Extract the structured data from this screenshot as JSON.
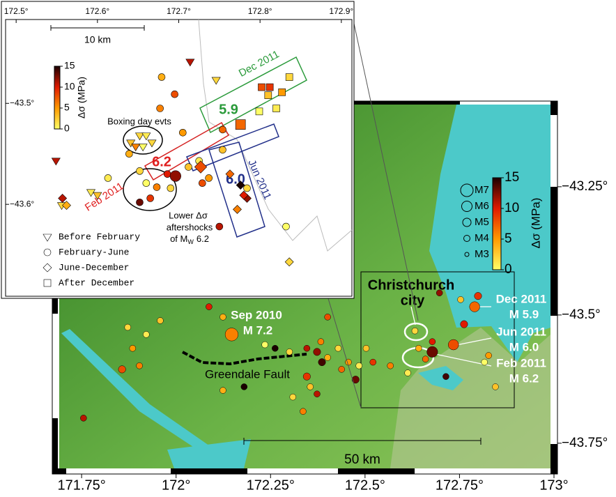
{
  "main_map": {
    "xlim": [
      171.7,
      173.0
    ],
    "ylim": [
      -43.81,
      -43.083
    ],
    "xticks": [
      {
        "value": 171.75,
        "label": "171.75°"
      },
      {
        "value": 172,
        "label": "172°"
      },
      {
        "value": 172.25,
        "label": "172.25°"
      },
      {
        "value": 172.5,
        "label": "172.5°"
      },
      {
        "value": 172.75,
        "label": "172.75°"
      },
      {
        "value": 173,
        "label": "173°"
      }
    ],
    "yticks": [
      {
        "value": -43.25,
        "label": "−43.25°"
      },
      {
        "value": -43.5,
        "label": "−43.5°"
      },
      {
        "value": -43.75,
        "label": "−43.75°"
      }
    ],
    "colorbar": {
      "label": "Δσ (MPa)",
      "lim": [
        0,
        15
      ],
      "ticks": [
        0,
        5,
        10,
        15
      ],
      "colormap": [
        "#ffff66",
        "#ff9a00",
        "#e01a00",
        "#1a0000"
      ]
    },
    "magnitude_legend": [
      {
        "value": 7,
        "label": "M7"
      },
      {
        "value": 6,
        "label": "M6"
      },
      {
        "value": 5,
        "label": "M5"
      },
      {
        "value": 4,
        "label": "M4"
      },
      {
        "value": 3,
        "label": "M3"
      }
    ],
    "annotations": {
      "city": [
        "Christchurch",
        "city"
      ],
      "sep_2010": [
        "Sep 2010",
        "M 7.2"
      ],
      "dec_2011": [
        "Dec 2011",
        "M 5.9"
      ],
      "jun_2011": [
        "Jun 2011",
        "M 6.0"
      ],
      "feb_2011": [
        "Feb 2011",
        "M 6.2"
      ],
      "fault": "Greendale Fault"
    },
    "scale_bar": "50 km",
    "points": [
      {
        "lon": 172.147,
        "lat": -43.538,
        "dsigma": 6,
        "mag": 7.2
      },
      {
        "lon": 171.755,
        "lat": -43.701,
        "dsigma": 11,
        "mag": 4
      },
      {
        "lon": 171.872,
        "lat": -43.524,
        "dsigma": 2,
        "mag": 4
      },
      {
        "lon": 171.885,
        "lat": -43.565,
        "dsigma": 5,
        "mag": 4
      },
      {
        "lon": 171.857,
        "lat": -43.606,
        "dsigma": 8,
        "mag": 4.5
      },
      {
        "lon": 171.921,
        "lat": -43.538,
        "dsigma": 1,
        "mag": 4
      },
      {
        "lon": 171.903,
        "lat": -43.599,
        "dsigma": 6,
        "mag": 4
      },
      {
        "lon": 171.958,
        "lat": -43.511,
        "dsigma": 3,
        "mag": 4
      },
      {
        "lon": 172.087,
        "lat": -43.484,
        "dsigma": 10,
        "mag": 4
      },
      {
        "lon": 172.124,
        "lat": -43.504,
        "dsigma": 4,
        "mag": 4
      },
      {
        "lon": 172.235,
        "lat": -43.558,
        "dsigma": 0,
        "mag": 4
      },
      {
        "lon": 172.262,
        "lat": -43.565,
        "dsigma": 15,
        "mag": 4
      },
      {
        "lon": 172.346,
        "lat": -43.62,
        "dsigma": 9,
        "mag": 4.5
      },
      {
        "lon": 172.355,
        "lat": -43.64,
        "dsigma": 3,
        "mag": 4
      },
      {
        "lon": 172.373,
        "lat": -43.572,
        "dsigma": 12,
        "mag": 4.5
      },
      {
        "lon": 172.383,
        "lat": -43.552,
        "dsigma": 6,
        "mag": 4
      },
      {
        "lon": 172.401,
        "lat": -43.583,
        "dsigma": 4,
        "mag": 4
      },
      {
        "lon": 172.386,
        "lat": -43.592,
        "dsigma": 14,
        "mag": 4.5
      },
      {
        "lon": 172.429,
        "lat": -43.565,
        "dsigma": 2,
        "mag": 4
      },
      {
        "lon": 172.438,
        "lat": -43.606,
        "dsigma": 7,
        "mag": 4
      },
      {
        "lon": 172.456,
        "lat": -43.592,
        "dsigma": 5,
        "mag": 4
      },
      {
        "lon": 172.475,
        "lat": -43.626,
        "dsigma": 13,
        "mag": 4.5
      },
      {
        "lon": 172.484,
        "lat": -43.599,
        "dsigma": 1,
        "mag": 4
      },
      {
        "lon": 172.503,
        "lat": -43.565,
        "dsigma": 3,
        "mag": 4
      },
      {
        "lon": 172.521,
        "lat": -43.592,
        "dsigma": 9,
        "mag": 4
      },
      {
        "lon": 172.373,
        "lat": -43.654,
        "dsigma": 11,
        "mag": 4
      },
      {
        "lon": 172.309,
        "lat": -43.66,
        "dsigma": 2,
        "mag": 4
      },
      {
        "lon": 172.336,
        "lat": -43.688,
        "dsigma": 6,
        "mag": 4
      },
      {
        "lon": 172.18,
        "lat": -43.64,
        "dsigma": 15,
        "mag": 4
      },
      {
        "lon": 172.124,
        "lat": -43.647,
        "dsigma": 4,
        "mag": 4
      },
      {
        "lon": 172.401,
        "lat": -43.504,
        "dsigma": 8,
        "mag": 4
      },
      {
        "lon": 172.632,
        "lat": -43.531,
        "dsigma": 2,
        "mag": 4
      },
      {
        "lon": 172.642,
        "lat": -43.565,
        "dsigma": 4,
        "mag": 4
      },
      {
        "lon": 172.678,
        "lat": -43.552,
        "dsigma": 10,
        "mag": 4
      },
      {
        "lon": 172.66,
        "lat": -43.586,
        "dsigma": 7,
        "mag": 4
      },
      {
        "lon": 172.697,
        "lat": -43.457,
        "dsigma": 12,
        "mag": 4
      },
      {
        "lon": 172.753,
        "lat": -43.47,
        "dsigma": 3,
        "mag": 4
      },
      {
        "lon": 172.799,
        "lat": -43.463,
        "dsigma": 9,
        "mag": 4.5
      },
      {
        "lon": 172.79,
        "lat": -43.484,
        "dsigma": 7,
        "mag": 5.9
      },
      {
        "lon": 172.762,
        "lat": -43.518,
        "dsigma": 10,
        "mag": 4.5
      },
      {
        "lon": 172.734,
        "lat": -43.558,
        "dsigma": 8,
        "mag": 6.0
      },
      {
        "lon": 172.678,
        "lat": -43.572,
        "dsigma": 13,
        "mag": 6.2
      },
      {
        "lon": 172.816,
        "lat": -43.592,
        "dsigma": 0,
        "mag": 4
      },
      {
        "lon": 172.827,
        "lat": -43.579,
        "dsigma": 5,
        "mag": 4
      },
      {
        "lon": 172.845,
        "lat": -43.64,
        "dsigma": 3,
        "mag": 4
      },
      {
        "lon": 172.613,
        "lat": -43.613,
        "dsigma": 1,
        "mag": 4
      },
      {
        "lon": 172.714,
        "lat": -43.62,
        "dsigma": 14,
        "mag": 4
      },
      {
        "lon": 172.3,
        "lat": -43.572,
        "dsigma": 2,
        "mag": 4
      },
      {
        "lon": 172.346,
        "lat": -43.565,
        "dsigma": 11,
        "mag": 4
      },
      {
        "lon": 172.567,
        "lat": -43.599,
        "dsigma": 6,
        "mag": 4
      }
    ]
  },
  "inset_map": {
    "xlim": [
      172.487,
      172.913
    ],
    "ylim": [
      -43.691,
      -43.417
    ],
    "xticks": [
      {
        "value": 172.5,
        "label": "172.5°"
      },
      {
        "value": 172.6,
        "label": "172.6°"
      },
      {
        "value": 172.7,
        "label": "172.7°"
      },
      {
        "value": 172.8,
        "label": "172.8°"
      },
      {
        "value": 172.9,
        "label": "172.9°"
      }
    ],
    "yticks": [
      {
        "value": -43.5,
        "label": "−43.5°"
      },
      {
        "value": -43.6,
        "label": "−43.6°"
      }
    ],
    "scale_bar": "10 km",
    "colorbar": {
      "label": "Δσ (MPa)",
      "lim": [
        0,
        15
      ],
      "ticks": [
        0,
        5,
        10,
        15
      ],
      "colormap": [
        "#ffff66",
        "#ff9a00",
        "#e01a00",
        "#1a0000"
      ]
    },
    "annotations": {
      "boxing_day": "Boxing day evts",
      "dec_2011": "Dec 2011",
      "m_dec": "5.9",
      "m_feb": "6.2",
      "m_jun": "6.0",
      "jun_2011": "Jun 2011",
      "feb_2011": "Feb 2011",
      "lower": [
        "Lower Δσ",
        "aftershocks",
        "of M",
        "W",
        "6.2"
      ]
    },
    "groups": [
      {
        "name": "Before February",
        "shape": "triangle",
        "points": [
          {
            "lon": 172.652,
            "lat": -43.532,
            "dsigma": 2
          },
          {
            "lon": 172.66,
            "lat": -43.532,
            "dsigma": 1
          },
          {
            "lon": 172.641,
            "lat": -43.539,
            "dsigma": 3
          },
          {
            "lon": 172.656,
            "lat": -43.543,
            "dsigma": 0
          },
          {
            "lon": 172.667,
            "lat": -43.539,
            "dsigma": 2
          },
          {
            "lon": 172.647,
            "lat": -43.543,
            "dsigma": 6
          },
          {
            "lon": 172.549,
            "lat": -43.557,
            "dsigma": 11
          },
          {
            "lon": 172.556,
            "lat": -43.601,
            "dsigma": 2
          },
          {
            "lon": 172.592,
            "lat": -43.588,
            "dsigma": 1
          },
          {
            "lon": 172.6,
            "lat": -43.591,
            "dsigma": 3
          },
          {
            "lon": 172.714,
            "lat": -43.459,
            "dsigma": 11
          },
          {
            "lon": 172.746,
            "lat": -43.477,
            "dsigma": 2
          }
        ]
      },
      {
        "name": "February-June",
        "shape": "circle",
        "points": [
          {
            "lon": 172.639,
            "lat": -43.55,
            "dsigma": 4
          },
          {
            "lon": 172.652,
            "lat": -43.567,
            "dsigma": 2
          },
          {
            "lon": 172.66,
            "lat": -43.579,
            "dsigma": 0
          },
          {
            "lon": 172.673,
            "lat": -43.583,
            "dsigma": 6
          },
          {
            "lon": 172.686,
            "lat": -43.57,
            "dsigma": 10
          },
          {
            "lon": 172.696,
            "lat": -43.572,
            "dsigma": 12,
            "mag": 6.2
          },
          {
            "lon": 172.712,
            "lat": -43.563,
            "dsigma": 3
          },
          {
            "lon": 172.729,
            "lat": -43.579,
            "dsigma": 8
          },
          {
            "lon": 172.737,
            "lat": -43.574,
            "dsigma": 5
          },
          {
            "lon": 172.725,
            "lat": -43.557,
            "dsigma": 1
          },
          {
            "lon": 172.754,
            "lat": -43.526,
            "dsigma": 7
          },
          {
            "lon": 172.754,
            "lat": -43.546,
            "dsigma": 3
          },
          {
            "lon": 172.652,
            "lat": -43.598,
            "dsigma": 13
          },
          {
            "lon": 172.665,
            "lat": -43.594,
            "dsigma": 9
          },
          {
            "lon": 172.69,
            "lat": -43.584,
            "dsigma": 2
          },
          {
            "lon": 172.679,
            "lat": -43.474,
            "dsigma": 4
          },
          {
            "lon": 172.695,
            "lat": -43.491,
            "dsigma": 8
          },
          {
            "lon": 172.705,
            "lat": -43.529,
            "dsigma": 5
          },
          {
            "lon": 172.613,
            "lat": -43.574,
            "dsigma": 1
          },
          {
            "lon": 172.677,
            "lat": -43.505,
            "dsigma": 6
          },
          {
            "lon": 172.75,
            "lat": -43.622,
            "dsigma": 11
          },
          {
            "lon": 172.784,
            "lat": -43.584,
            "dsigma": 2
          },
          {
            "lon": 172.832,
            "lat": -43.622,
            "dsigma": 0
          }
        ]
      },
      {
        "name": "June-December",
        "shape": "diamond",
        "points": [
          {
            "lon": 172.727,
            "lat": -43.563,
            "dsigma": 8,
            "mag": 6.0
          },
          {
            "lon": 172.776,
            "lat": -43.581,
            "dsigma": 15
          },
          {
            "lon": 172.784,
            "lat": -43.594,
            "dsigma": 12
          },
          {
            "lon": 172.772,
            "lat": -43.605,
            "dsigma": 6
          },
          {
            "lon": 172.78,
            "lat": -43.591,
            "dsigma": 10
          },
          {
            "lon": 172.763,
            "lat": -43.57,
            "dsigma": 7
          },
          {
            "lon": 172.836,
            "lat": -43.657,
            "dsigma": 2
          },
          {
            "lon": 172.557,
            "lat": -43.594,
            "dsigma": 11
          },
          {
            "lon": 172.562,
            "lat": -43.601,
            "dsigma": 4
          }
        ]
      },
      {
        "name": "After December",
        "shape": "square",
        "points": [
          {
            "lon": 172.776,
            "lat": -43.521,
            "dsigma": 7,
            "mag": 5.9
          },
          {
            "lon": 172.802,
            "lat": -43.484,
            "dsigma": 8
          },
          {
            "lon": 172.812,
            "lat": -43.484,
            "dsigma": 9
          },
          {
            "lon": 172.81,
            "lat": -43.492,
            "dsigma": 3
          },
          {
            "lon": 172.82,
            "lat": -43.505,
            "dsigma": 1
          },
          {
            "lon": 172.836,
            "lat": -43.474,
            "dsigma": 2
          },
          {
            "lon": 172.827,
            "lat": -43.489,
            "dsigma": 5
          },
          {
            "lon": 172.799,
            "lat": -43.508,
            "dsigma": 0
          }
        ]
      }
    ]
  }
}
